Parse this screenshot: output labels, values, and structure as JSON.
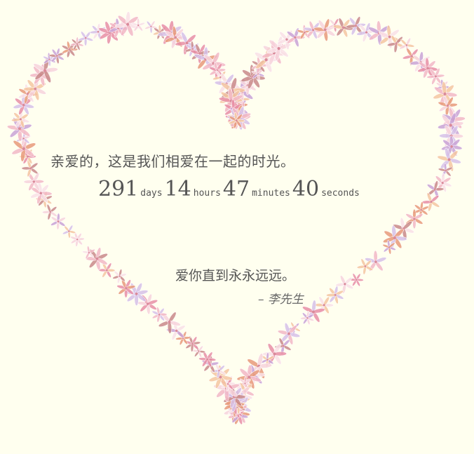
{
  "greeting": "亲爱的，这是我们相爱在一起的时光。",
  "timer": {
    "days": "291",
    "days_label": "days",
    "hours": "14",
    "hours_label": "hours",
    "minutes": "47",
    "minutes_label": "minutes",
    "seconds": "40",
    "seconds_label": "seconds"
  },
  "message": "爱你直到永永远远。",
  "signature": "– 李先生",
  "colors": {
    "background": "#ffffef",
    "text": "#555555",
    "petal_palette": [
      "#f2b8c6",
      "#e88fa6",
      "#f7d3dc",
      "#c9a3d6",
      "#f4c7a1",
      "#e89a7a",
      "#d6c1e8",
      "#f9e0e6",
      "#c98a8a"
    ]
  },
  "decoration": {
    "heart_icon": "flower-heart-icon"
  }
}
